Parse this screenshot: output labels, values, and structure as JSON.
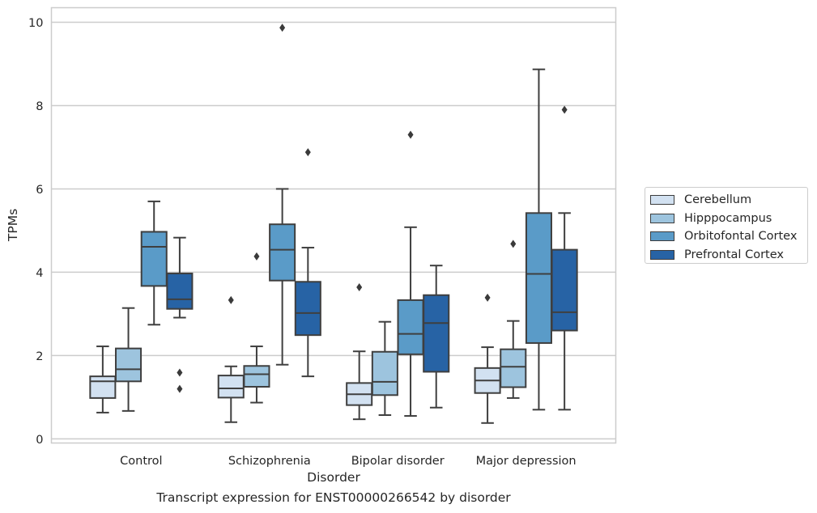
{
  "caption": "Transcript expression for ENST00000266542 by disorder",
  "chart_data": {
    "type": "box",
    "xlabel": "Disorder",
    "ylabel": "TPMs",
    "ylim": [
      -0.1,
      10.35
    ],
    "yticks": [
      0,
      2,
      4,
      6,
      8,
      10
    ],
    "grid": "horizontal",
    "legend_position": "center-right",
    "categories": [
      "Control",
      "Schizophrenia",
      "Bipolar disorder",
      "Major depression"
    ],
    "series": [
      {
        "name": "Cerebellum",
        "color": "#d2e1f1",
        "boxes": [
          {
            "whislo": 0.63,
            "q1": 0.98,
            "med": 1.38,
            "q3": 1.5,
            "whishi": 2.22,
            "fliers": []
          },
          {
            "whislo": 0.4,
            "q1": 0.99,
            "med": 1.21,
            "q3": 1.52,
            "whishi": 1.74,
            "fliers": [
              3.33
            ]
          },
          {
            "whislo": 0.47,
            "q1": 0.81,
            "med": 1.07,
            "q3": 1.34,
            "whishi": 2.1,
            "fliers": [
              3.64
            ]
          },
          {
            "whislo": 0.38,
            "q1": 1.1,
            "med": 1.4,
            "q3": 1.7,
            "whishi": 2.2,
            "fliers": [
              3.39
            ]
          }
        ]
      },
      {
        "name": "Hipppocampus",
        "color": "#9dc4de",
        "boxes": [
          {
            "whislo": 0.67,
            "q1": 1.38,
            "med": 1.67,
            "q3": 2.17,
            "whishi": 3.14,
            "fliers": []
          },
          {
            "whislo": 0.87,
            "q1": 1.25,
            "med": 1.55,
            "q3": 1.75,
            "whishi": 2.22,
            "fliers": [
              4.38
            ]
          },
          {
            "whislo": 0.57,
            "q1": 1.05,
            "med": 1.37,
            "q3": 2.09,
            "whishi": 2.81,
            "fliers": []
          },
          {
            "whislo": 0.98,
            "q1": 1.24,
            "med": 1.73,
            "q3": 2.15,
            "whishi": 2.83,
            "fliers": [
              4.68
            ]
          }
        ]
      },
      {
        "name": "Orbitofontal Cortex",
        "color": "#5a9bc8",
        "boxes": [
          {
            "whislo": 2.74,
            "q1": 3.67,
            "med": 4.61,
            "q3": 4.97,
            "whishi": 5.7,
            "fliers": []
          },
          {
            "whislo": 1.78,
            "q1": 3.8,
            "med": 4.54,
            "q3": 5.15,
            "whishi": 6.0,
            "fliers": [
              9.87
            ]
          },
          {
            "whislo": 0.55,
            "q1": 2.03,
            "med": 2.52,
            "q3": 3.33,
            "whishi": 5.08,
            "fliers": [
              7.3
            ]
          },
          {
            "whislo": 0.7,
            "q1": 2.3,
            "med": 3.96,
            "q3": 5.42,
            "whishi": 8.87,
            "fliers": []
          }
        ]
      },
      {
        "name": "Prefrontal Cortex",
        "color": "#2763a5",
        "boxes": [
          {
            "whislo": 2.91,
            "q1": 3.12,
            "med": 3.35,
            "q3": 3.97,
            "whishi": 4.83,
            "fliers": [
              1.59,
              1.2
            ]
          },
          {
            "whislo": 1.5,
            "q1": 2.49,
            "med": 3.02,
            "q3": 3.77,
            "whishi": 4.59,
            "fliers": [
              6.88
            ]
          },
          {
            "whislo": 0.75,
            "q1": 1.61,
            "med": 2.78,
            "q3": 3.45,
            "whishi": 4.16,
            "fliers": []
          },
          {
            "whislo": 0.7,
            "q1": 2.6,
            "med": 3.04,
            "q3": 4.54,
            "whishi": 5.42,
            "fliers": [
              7.9
            ]
          }
        ]
      }
    ]
  }
}
